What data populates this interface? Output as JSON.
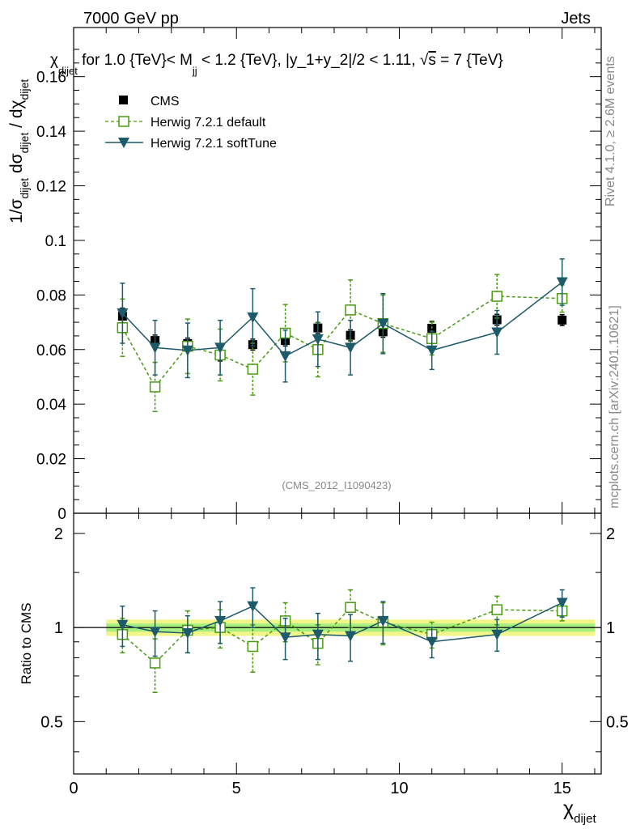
{
  "header": {
    "left": "7000 GeV pp",
    "right": "Jets"
  },
  "side_text": {
    "rivet": "Rivet 4.1.0, ≥ 2.6M events",
    "mcplots": "mcplots.cern.ch [arXiv:2401.10621]"
  },
  "chart_data": [
    {
      "type": "scatter",
      "panel": "main",
      "title": "χ_dijet for 1.0 {TeV}< M_jj < 1.2 {TeV}, |y_1+y_2|/2 < 1.11, √s = 7 {TeV}",
      "title_parts": {
        "sym": "χ",
        "sub1": "dijet",
        "a": " for 1.0 {TeV}< M",
        "sub2": "jj",
        "b": " < 1.2 {TeV}, |y_1+y_2|/2 < 1.11, ",
        "sqrt": "√",
        "s": "s",
        "c": " = 7 {TeV}"
      },
      "ylabel": "1/σ_dijet dσ_dijet / dχ_dijet",
      "ylabel_parts": {
        "one": "1/σ",
        "sub1": "dijet",
        "dsigma": " dσ",
        "sub2": "dijet",
        "slash": " / dχ",
        "sub3": "dijet"
      },
      "xlim": [
        0,
        16.2
      ],
      "ylim": [
        0,
        0.178
      ],
      "yticks": [
        0,
        0.02,
        0.04,
        0.06,
        0.08,
        0.1,
        0.12,
        0.14,
        0.16
      ],
      "ytick_labels": [
        "0",
        "0.02",
        "0.04",
        "0.06",
        "0.08",
        "0.1",
        "0.12",
        "0.14",
        "0.16"
      ],
      "watermark": "(CMS_2012_I1090423)",
      "legend_position": "top-left",
      "series": [
        {
          "name": "CMS",
          "style": "square-filled",
          "color": "#000000",
          "x": [
            1.5,
            2.5,
            3.5,
            4.5,
            5.5,
            6.5,
            7.5,
            8.5,
            9.5,
            11,
            13,
            15
          ],
          "xerr": [
            0.5,
            0.5,
            0.5,
            0.5,
            0.5,
            0.5,
            0.5,
            0.5,
            0.5,
            1,
            1,
            1
          ],
          "y": [
            0.0722,
            0.0633,
            0.0622,
            0.0578,
            0.0618,
            0.0633,
            0.0679,
            0.0652,
            0.0665,
            0.0678,
            0.0709,
            0.0708
          ],
          "yerr": [
            0.003,
            0.002,
            0.002,
            0.002,
            0.002,
            0.002,
            0.002,
            0.002,
            0.002,
            0.0025,
            0.002,
            0.002
          ]
        },
        {
          "name": "Herwig 7.2.1 default",
          "style": "square-open-dashed",
          "color": "#4a9a12",
          "x": [
            1.5,
            2.5,
            3.5,
            4.5,
            5.5,
            6.5,
            7.5,
            8.5,
            9.5,
            11,
            13,
            15
          ],
          "y": [
            0.068,
            0.0463,
            0.0612,
            0.058,
            0.0528,
            0.066,
            0.06,
            0.0745,
            0.0695,
            0.064,
            0.0795,
            0.0787
          ],
          "yerr": [
            0.0105,
            0.009,
            0.01,
            0.0095,
            0.0095,
            0.0105,
            0.01,
            0.011,
            0.0105,
            0.006,
            0.008,
            0.005
          ]
        },
        {
          "name": "Herwig 7.2.1 softTune",
          "style": "triangle-down-solid",
          "color": "#1d5a6a",
          "x": [
            1.5,
            2.5,
            3.5,
            4.5,
            5.5,
            6.5,
            7.5,
            8.5,
            9.5,
            11,
            13,
            15
          ],
          "y": [
            0.0733,
            0.0607,
            0.0597,
            0.0607,
            0.0718,
            0.0576,
            0.0638,
            0.0607,
            0.0695,
            0.0597,
            0.0663,
            0.0847
          ],
          "yerr": [
            0.011,
            0.01,
            0.01,
            0.01,
            0.0105,
            0.0095,
            0.01,
            0.01,
            0.011,
            0.007,
            0.008,
            0.0085
          ]
        }
      ]
    },
    {
      "type": "scatter",
      "panel": "ratio",
      "ylabel": "Ratio to CMS",
      "xlabel": "χ_dijet",
      "xlabel_parts": {
        "sym": "χ",
        "sub": "dijet"
      },
      "xlim": [
        0,
        16.2
      ],
      "ylim": [
        0.34,
        2.32
      ],
      "yscale": "log",
      "yticks": [
        0.5,
        1,
        2
      ],
      "ytick_labels": [
        "0.5",
        "1",
        "2"
      ],
      "xticks": [
        0,
        5,
        10,
        15
      ],
      "xtick_labels": [
        "0",
        "5",
        "10",
        "15"
      ],
      "band": {
        "x": [
          1,
          16
        ],
        "inner_half_width": 0.03,
        "outer_half_width": 0.06,
        "inner_color": "#a8ee80",
        "outer_color": "#f2f58a"
      },
      "series": [
        {
          "name": "Herwig 7.2.1 default",
          "color": "#4a9a12",
          "x": [
            1.5,
            2.5,
            3.5,
            4.5,
            5.5,
            6.5,
            7.5,
            8.5,
            9.5,
            11,
            13,
            15
          ],
          "y": [
            0.95,
            0.77,
            0.98,
            1.0,
            0.87,
            1.05,
            0.89,
            1.16,
            1.04,
            0.95,
            1.14,
            1.13
          ],
          "yerr": [
            0.12,
            0.15,
            0.15,
            0.14,
            0.15,
            0.15,
            0.13,
            0.16,
            0.16,
            0.09,
            0.12,
            0.08
          ]
        },
        {
          "name": "Herwig 7.2.1 softTune",
          "color": "#1d5a6a",
          "x": [
            1.5,
            2.5,
            3.5,
            4.5,
            5.5,
            6.5,
            7.5,
            8.5,
            9.5,
            11,
            13,
            15
          ],
          "y": [
            1.02,
            0.97,
            0.96,
            1.05,
            1.17,
            0.93,
            0.95,
            0.94,
            1.05,
            0.9,
            0.95,
            1.2
          ],
          "yerr": [
            0.15,
            0.16,
            0.13,
            0.16,
            0.17,
            0.14,
            0.16,
            0.16,
            0.16,
            0.1,
            0.11,
            0.12
          ]
        }
      ]
    }
  ]
}
